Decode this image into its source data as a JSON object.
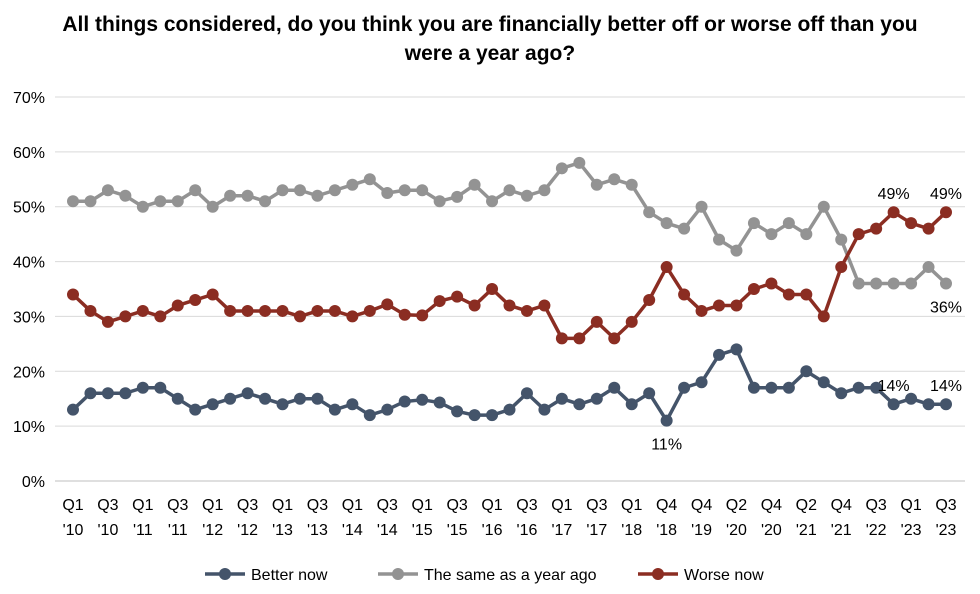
{
  "chart_data": {
    "type": "line",
    "title": "All things considered, do you think you are financially better off or worse off than you were a year ago?",
    "xlabel": "",
    "ylabel": "",
    "ylim": [
      0,
      70
    ],
    "yticks": [
      "0%",
      "10%",
      "20%",
      "30%",
      "40%",
      "50%",
      "60%",
      "70%"
    ],
    "grid": true,
    "legend_position": "bottom",
    "x_tick_labels": [
      {
        "index": 0,
        "quarter": "Q1",
        "year": "'10"
      },
      {
        "index": 2,
        "quarter": "Q3",
        "year": "'10"
      },
      {
        "index": 4,
        "quarter": "Q1",
        "year": "'11"
      },
      {
        "index": 6,
        "quarter": "Q3",
        "year": "'11"
      },
      {
        "index": 8,
        "quarter": "Q1",
        "year": "'12"
      },
      {
        "index": 10,
        "quarter": "Q3",
        "year": "'12"
      },
      {
        "index": 12,
        "quarter": "Q1",
        "year": "'13"
      },
      {
        "index": 14,
        "quarter": "Q3",
        "year": "'13"
      },
      {
        "index": 16,
        "quarter": "Q1",
        "year": "'14"
      },
      {
        "index": 18,
        "quarter": "Q3",
        "year": "'14"
      },
      {
        "index": 20,
        "quarter": "Q1",
        "year": "'15"
      },
      {
        "index": 22,
        "quarter": "Q3",
        "year": "'15"
      },
      {
        "index": 24,
        "quarter": "Q1",
        "year": "'16"
      },
      {
        "index": 26,
        "quarter": "Q3",
        "year": "'16"
      },
      {
        "index": 28,
        "quarter": "Q1",
        "year": "'17"
      },
      {
        "index": 30,
        "quarter": "Q3",
        "year": "'17"
      },
      {
        "index": 32,
        "quarter": "Q1",
        "year": "'18"
      },
      {
        "index": 34,
        "quarter": "Q4",
        "year": "'18"
      },
      {
        "index": 36,
        "quarter": "Q4",
        "year": "'19"
      },
      {
        "index": 38,
        "quarter": "Q2",
        "year": "'20"
      },
      {
        "index": 40,
        "quarter": "Q4",
        "year": "'20"
      },
      {
        "index": 42,
        "quarter": "Q2",
        "year": "'21"
      },
      {
        "index": 44,
        "quarter": "Q4",
        "year": "'21"
      },
      {
        "index": 46,
        "quarter": "Q3",
        "year": "'22"
      },
      {
        "index": 48,
        "quarter": "Q1",
        "year": "'23"
      },
      {
        "index": 50,
        "quarter": "Q3",
        "year": "'23"
      }
    ],
    "series": [
      {
        "name": "Better now",
        "color": "#44546a",
        "values": [
          13,
          16,
          16,
          16,
          17,
          17,
          15,
          13,
          14,
          15,
          16,
          15,
          14,
          15,
          15,
          13,
          14,
          12,
          13,
          14.5,
          14.8,
          14.3,
          12.7,
          12,
          12,
          13,
          16,
          13,
          15,
          14,
          15,
          17,
          14,
          16,
          11,
          17,
          18,
          23,
          24,
          17,
          17,
          17,
          20,
          18,
          16,
          17,
          17,
          14,
          15,
          14,
          14
        ]
      },
      {
        "name": "The same as a year ago",
        "color": "#939393",
        "values": [
          51,
          51,
          53,
          52,
          50,
          51,
          51,
          53,
          50,
          52,
          52,
          51,
          53,
          53,
          52,
          53,
          54,
          55,
          52.5,
          53,
          53,
          51,
          51.8,
          54,
          51,
          53,
          52,
          53,
          57,
          58,
          54,
          55,
          54,
          49,
          47,
          46,
          50,
          44,
          42,
          47,
          45,
          47,
          45,
          50,
          44,
          36,
          36,
          36,
          36,
          39,
          36
        ]
      },
      {
        "name": "Worse now",
        "color": "#8b2d22",
        "values": [
          34,
          31,
          29,
          30,
          31,
          30,
          32,
          33,
          34,
          31,
          31,
          31,
          31,
          30,
          31,
          31,
          30,
          31,
          32.2,
          30.3,
          30.2,
          32.8,
          33.6,
          32,
          35,
          32,
          31,
          32,
          26,
          26,
          29,
          26,
          29,
          33,
          39,
          34,
          31,
          32,
          32,
          35,
          36,
          34,
          34,
          30,
          39,
          45,
          46,
          49,
          47,
          46,
          49
        ]
      }
    ],
    "annotations": [
      {
        "series": 0,
        "index": 34,
        "text": "11%",
        "position": "below"
      },
      {
        "series": 0,
        "index": 47,
        "text": "14%",
        "position": "above"
      },
      {
        "series": 0,
        "index": 50,
        "text": "14%",
        "position": "above"
      },
      {
        "series": 1,
        "index": 50,
        "text": "36%",
        "position": "below"
      },
      {
        "series": 2,
        "index": 47,
        "text": "49%",
        "position": "above"
      },
      {
        "series": 2,
        "index": 50,
        "text": "49%",
        "position": "above"
      }
    ]
  }
}
